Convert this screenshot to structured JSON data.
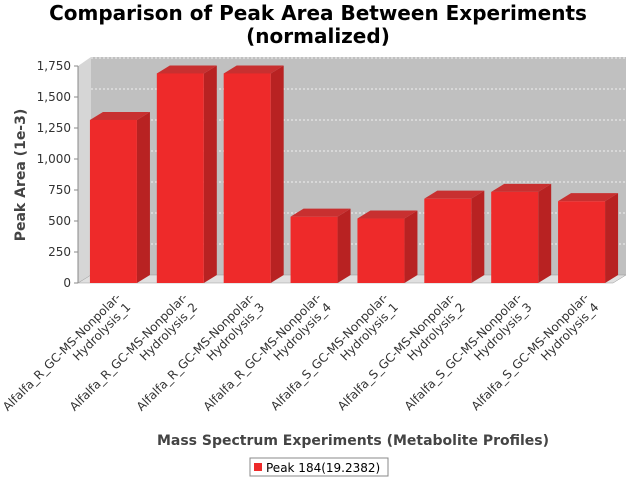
{
  "chart_data": {
    "type": "bar",
    "title_line1": "Comparison of Peak Area Between Experiments",
    "title_line2": "(normalized)",
    "xlabel": "Mass Spectrum Experiments (Metabolite Profiles)",
    "ylabel": "Peak Area (1e-3)",
    "ylim": [
      0,
      1750
    ],
    "yticks": [
      0,
      250,
      500,
      750,
      1000,
      1250,
      1500,
      1750
    ],
    "ytick_labels": [
      "0",
      "250",
      "500",
      "750",
      "1,000",
      "1,250",
      "1,500",
      "1,750"
    ],
    "grid": true,
    "legend_position": "bottom",
    "categories": [
      [
        "Alfalfa_R_GC-MS-Nonpolar-",
        "Hydrolysis_1"
      ],
      [
        "Alfalfa_R_GC-MS-Nonpolar-",
        "Hydrolysis_2"
      ],
      [
        "Alfalfa_R_GC-MS-Nonpolar-",
        "Hydrolysis_3"
      ],
      [
        "Alfalfa_R_GC-MS-Nonpolar-",
        "Hydrolysis_4"
      ],
      [
        "Alfalfa_S_GC-MS-Nonpolar-",
        "Hydrolysis_1"
      ],
      [
        "Alfalfa_S_GC-MS-Nonpolar-",
        "Hydrolysis_2"
      ],
      [
        "Alfalfa_S_GC-MS-Nonpolar-",
        "Hydrolysis_3"
      ],
      [
        "Alfalfa_S_GC-MS-Nonpolar-",
        "Hydrolysis_4"
      ]
    ],
    "series": [
      {
        "name": "Peak 184(19.2382)",
        "color": "#ee2a2a",
        "values": [
          1315,
          1690,
          1690,
          535,
          520,
          680,
          735,
          660
        ]
      }
    ]
  }
}
